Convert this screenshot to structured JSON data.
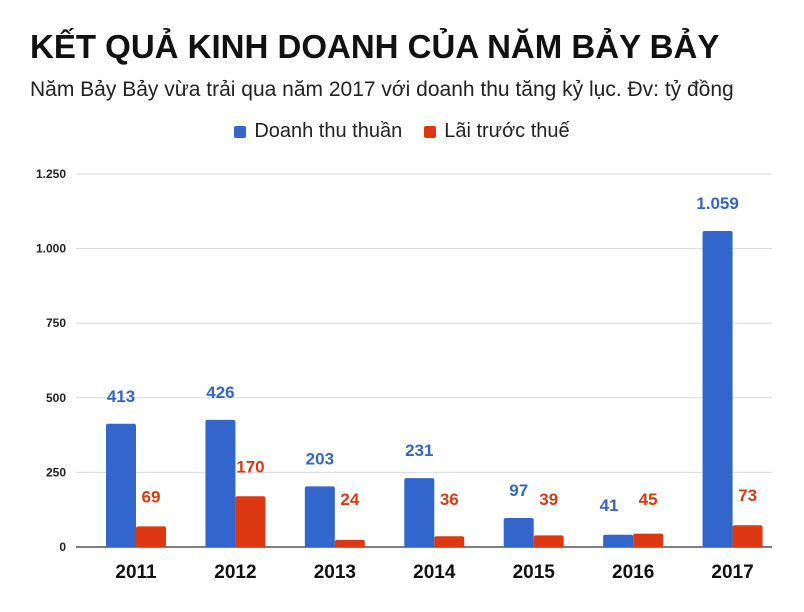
{
  "chart_data": {
    "type": "bar",
    "title": "KẾT QUẢ KINH DOANH CỦA NĂM BẢY BẢY",
    "subtitle": "Năm Bảy Bảy vừa trải qua năm 2017 với doanh thu tăng kỷ lục. Đv: tỷ đồng",
    "categories": [
      "2011",
      "2012",
      "2013",
      "2014",
      "2015",
      "2016",
      "2017"
    ],
    "series": [
      {
        "name": "Doanh thu thuần",
        "color": "#3366cc",
        "values": [
          413,
          426,
          203,
          231,
          97,
          41,
          1059
        ],
        "labels": [
          "413",
          "426",
          "203",
          "231",
          "97",
          "41",
          "1.059"
        ]
      },
      {
        "name": "Lãi trước thuế",
        "color": "#dc3912",
        "values": [
          69,
          170,
          24,
          36,
          39,
          45,
          73
        ],
        "labels": [
          "69",
          "170",
          "24",
          "36",
          "39",
          "45",
          "73"
        ]
      }
    ],
    "ylim": [
      0,
      1250
    ],
    "yticks": [
      {
        "value": 0,
        "label": "0"
      },
      {
        "value": 250,
        "label": "250"
      },
      {
        "value": 500,
        "label": "500"
      },
      {
        "value": 750,
        "label": "750"
      },
      {
        "value": 1000,
        "label": "1.000"
      },
      {
        "value": 1250,
        "label": "1.250"
      }
    ],
    "xlabel": "",
    "ylabel": "",
    "grid": true,
    "legend_position": "top-center"
  }
}
